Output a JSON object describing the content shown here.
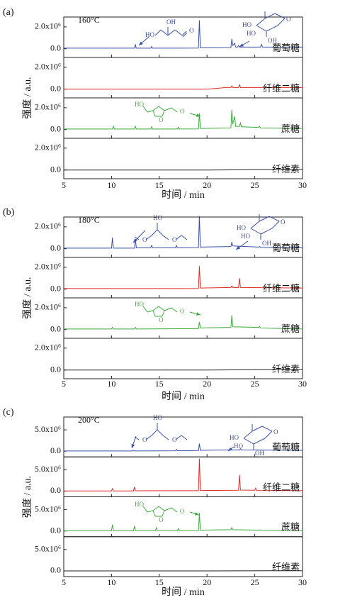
{
  "chart_data": [
    {
      "type": "line",
      "label": "(a)",
      "temperature": "160°C",
      "xlabel": "时间 / min",
      "ylabel": "强度 / a.u.",
      "xlim": [
        5,
        30
      ],
      "xticks": [
        5,
        10,
        15,
        20,
        25,
        30
      ],
      "ylim": [
        -800000,
        2900000
      ],
      "yticks": [
        {
          "value": 0,
          "label": "0.0"
        },
        {
          "value": 2000000,
          "label": "2.0x10⁶"
        }
      ],
      "series": [
        {
          "name": "葡萄糖",
          "color": "#3a4ea6",
          "x": [
            5,
            10,
            12.42,
            12.5,
            12.58,
            14.12,
            14.2,
            14.28,
            19.1,
            19.2,
            19.3,
            22.5,
            22.6,
            22.7,
            22.8,
            22.9,
            23.0,
            23.2,
            23.3,
            23.4,
            25.6,
            25.7,
            25.8,
            30
          ],
          "values": [
            50000,
            50000,
            50000,
            400000,
            50000,
            50000,
            200000,
            50000,
            60000,
            2600000,
            80000,
            100000,
            900000,
            300000,
            400000,
            500000,
            150000,
            150000,
            300000,
            150000,
            150000,
            400000,
            150000,
            150000
          ]
        },
        {
          "name": "纤维二糖",
          "color": "#e02a2a",
          "x": [
            5,
            20,
            22,
            22.5,
            22.6,
            22.7,
            23.3,
            23.4,
            23.5,
            30
          ],
          "values": [
            0,
            0,
            150000,
            150000,
            300000,
            150000,
            150000,
            400000,
            150000,
            150000
          ]
        },
        {
          "name": "蔗糖",
          "color": "#3caa3c",
          "x": [
            5,
            10.1,
            10.2,
            10.3,
            12.4,
            12.5,
            12.6,
            14.1,
            14.2,
            14.3,
            16.9,
            17,
            17.1,
            19.1,
            19.2,
            19.3,
            22.5,
            22.6,
            22.7,
            22.9,
            23.0,
            23.4,
            23.5,
            23.6,
            25.4,
            25.5,
            25.6,
            30
          ],
          "values": [
            50000,
            50000,
            300000,
            50000,
            50000,
            300000,
            50000,
            50000,
            250000,
            50000,
            50000,
            200000,
            50000,
            60000,
            1500000,
            100000,
            150000,
            1800000,
            500000,
            1200000,
            300000,
            300000,
            600000,
            250000,
            200000,
            300000,
            150000,
            100000
          ]
        },
        {
          "name": "纤维素",
          "color": "#222222",
          "x": [
            5,
            20,
            30
          ],
          "values": [
            0,
            0,
            50000
          ]
        }
      ],
      "structures": [
        {
          "color": "#3a4ea6",
          "labels": [
            "HO",
            "OH",
            "O"
          ]
        },
        {
          "color": "#3a4ea6",
          "labels": [
            "HO",
            "HO",
            "OH",
            "O"
          ]
        },
        {
          "color": "#3caa3c",
          "labels": [
            "HO",
            "O",
            "O"
          ]
        }
      ]
    },
    {
      "type": "line",
      "label": "(b)",
      "temperature": "180°C",
      "xlabel": "时间 / min",
      "ylabel": "强度 / a.u.",
      "xlim": [
        5,
        30
      ],
      "xticks": [
        5,
        10,
        15,
        20,
        25,
        30
      ],
      "ylim": [
        -800000,
        2900000
      ],
      "yticks": [
        {
          "value": 0,
          "label": "0.0"
        },
        {
          "value": 2000000,
          "label": "2.0x10⁶"
        }
      ],
      "series": [
        {
          "name": "葡萄糖",
          "color": "#3a4ea6",
          "x": [
            5,
            10.0,
            10.1,
            10.2,
            12.4,
            12.5,
            12.6,
            14.1,
            14.2,
            14.3,
            16.7,
            16.8,
            16.9,
            19.1,
            19.2,
            19.3,
            22.5,
            22.6,
            22.7,
            25.4,
            25.5,
            25.6,
            30
          ],
          "values": [
            50000,
            50000,
            1000000,
            50000,
            50000,
            900000,
            80000,
            80000,
            300000,
            80000,
            80000,
            300000,
            80000,
            100000,
            3000000,
            150000,
            200000,
            600000,
            250000,
            150000,
            200000,
            120000,
            100000
          ]
        },
        {
          "name": "纤维二糖",
          "color": "#e02a2a",
          "x": [
            5,
            19.1,
            19.2,
            19.3,
            22.5,
            22.6,
            22.7,
            23.3,
            23.4,
            23.5,
            30
          ],
          "values": [
            50000,
            60000,
            2100000,
            100000,
            150000,
            300000,
            150000,
            150000,
            1000000,
            150000,
            100000
          ]
        },
        {
          "name": "蔗糖",
          "color": "#3caa3c",
          "x": [
            5,
            10.0,
            10.1,
            10.2,
            12.4,
            12.5,
            12.6,
            19.1,
            19.2,
            19.3,
            22.5,
            22.6,
            22.7,
            25.4,
            25.5,
            25.6,
            30
          ],
          "values": [
            50000,
            50000,
            200000,
            50000,
            50000,
            200000,
            50000,
            80000,
            700000,
            150000,
            200000,
            1300000,
            250000,
            200000,
            300000,
            150000,
            50000
          ]
        },
        {
          "name": "纤维素",
          "color": "#222222",
          "x": [
            5,
            20,
            30
          ],
          "values": [
            0,
            0,
            50000
          ]
        }
      ],
      "structures": [
        {
          "color": "#3a4ea6",
          "labels": [
            "HO",
            "O",
            "O"
          ]
        },
        {
          "color": "#3a4ea6",
          "labels": [
            "HO",
            "HO",
            "OH",
            "O"
          ]
        },
        {
          "color": "#3caa3c",
          "labels": [
            "HO",
            "O",
            "O"
          ]
        }
      ]
    },
    {
      "type": "line",
      "label": "(c)",
      "temperature": "200°C",
      "xlabel": "时间 / min",
      "ylabel": "强度 / a.u.",
      "xlim": [
        5,
        30
      ],
      "xticks": [
        5,
        10,
        15,
        20,
        25,
        30
      ],
      "ylim": [
        -1330000,
        8000000
      ],
      "yticks": [
        {
          "value": 0,
          "label": "0.0"
        },
        {
          "value": 5000000,
          "label": "5.0x10⁶"
        }
      ],
      "series": [
        {
          "name": "葡萄糖",
          "color": "#3a4ea6",
          "x": [
            5,
            12.2,
            12.3,
            12.4,
            16.7,
            16.8,
            16.9,
            19.1,
            19.2,
            19.3,
            22,
            23.4,
            23.5,
            23.6,
            30
          ],
          "values": [
            50000,
            50000,
            200000,
            50000,
            100000,
            400000,
            100000,
            150000,
            1800000,
            200000,
            300000,
            300000,
            600000,
            300000,
            200000
          ]
        },
        {
          "name": "纤维二糖",
          "color": "#e02a2a",
          "x": [
            5,
            10.0,
            10.1,
            10.2,
            12.3,
            12.4,
            12.5,
            19.1,
            19.2,
            19.3,
            23.3,
            23.4,
            23.5,
            25.0,
            25.1,
            25.2,
            30
          ],
          "values": [
            50000,
            50000,
            600000,
            50000,
            50000,
            1000000,
            80000,
            100000,
            7600000,
            150000,
            200000,
            3800000,
            250000,
            200000,
            700000,
            150000,
            100000
          ]
        },
        {
          "name": "蔗糖",
          "color": "#3caa3c",
          "x": [
            5,
            10.0,
            10.1,
            10.2,
            12.3,
            12.4,
            12.5,
            14.6,
            14.7,
            14.8,
            16.9,
            17,
            17.1,
            19.1,
            19.2,
            19.3,
            22.5,
            22.6,
            22.7,
            25.4,
            25.5,
            25.6,
            30
          ],
          "values": [
            50000,
            50000,
            1500000,
            50000,
            50000,
            1200000,
            80000,
            80000,
            800000,
            80000,
            80000,
            600000,
            80000,
            100000,
            4200000,
            200000,
            300000,
            800000,
            300000,
            200000,
            300000,
            150000,
            100000
          ]
        },
        {
          "name": "纤维素",
          "color": "#222222",
          "x": [
            5,
            20,
            30
          ],
          "values": [
            0,
            0,
            50000
          ]
        }
      ],
      "structures": [
        {
          "color": "#3a4ea6",
          "labels": [
            "HO",
            "O",
            "O"
          ]
        },
        {
          "color": "#3a4ea6",
          "labels": [
            "HO",
            "HO",
            "OH",
            "O"
          ]
        },
        {
          "color": "#3caa3c",
          "labels": [
            "HO",
            "O",
            "O"
          ]
        }
      ]
    }
  ]
}
